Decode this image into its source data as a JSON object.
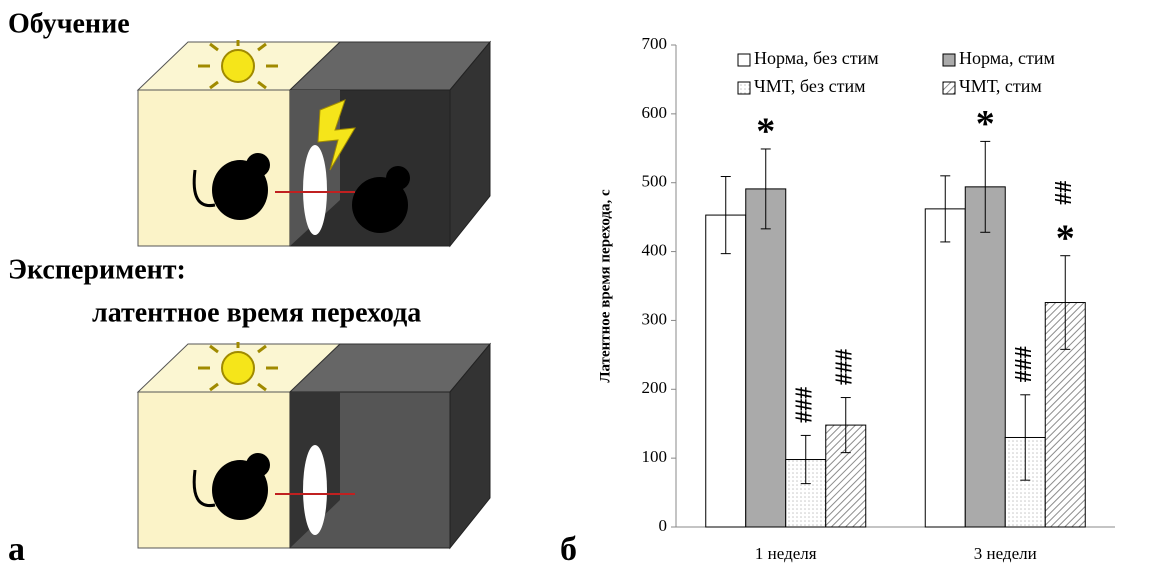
{
  "panel_a": {
    "label": "а",
    "title": "Обучение",
    "experiment": "Эксперимент:",
    "measure": "латентное время перехода"
  },
  "chart_data": {
    "type": "bar",
    "panel_label": "б",
    "ylabel": "Латентное  время перехода, с",
    "categories": [
      "1 неделя",
      "3 недели"
    ],
    "series": [
      {
        "name": "Норма, без стим",
        "color": "#ffffff",
        "fill": "solid",
        "values": [
          453,
          462
        ],
        "errors": [
          56,
          48
        ],
        "annotations": [
          [],
          []
        ]
      },
      {
        "name": "Норма, стим",
        "color": "#aaaaaa",
        "fill": "solid",
        "values": [
          491,
          494
        ],
        "errors": [
          58,
          66
        ],
        "annotations": [
          [
            "*"
          ],
          [
            "*"
          ]
        ]
      },
      {
        "name": "ЧМТ, без стим",
        "color": "#c8c8c8",
        "fill": "dots",
        "values": [
          98,
          130
        ],
        "errors": [
          35,
          62
        ],
        "annotations": [
          [
            "###"
          ],
          [
            "###"
          ]
        ]
      },
      {
        "name": "ЧМТ, стим",
        "color": "#8c8c8c",
        "fill": "hatch",
        "values": [
          148,
          326
        ],
        "errors": [
          40,
          68
        ],
        "annotations": [
          [
            "###"
          ],
          [
            "*",
            "##"
          ]
        ]
      }
    ],
    "ylim": [
      0,
      700
    ],
    "yticks": [
      0,
      100,
      200,
      300,
      400,
      500,
      600,
      700
    ]
  }
}
